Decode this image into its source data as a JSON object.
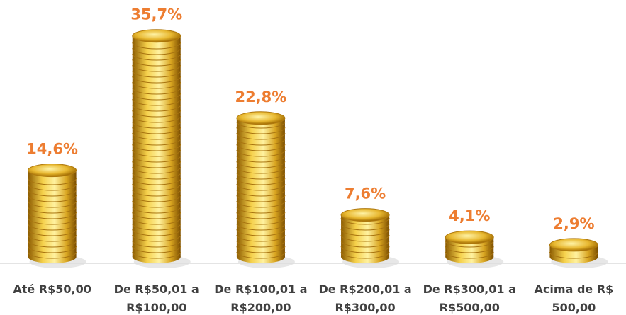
{
  "chart_data": {
    "type": "coin-stack",
    "categories": [
      "Até R$50,00",
      "De R$50,01 a R$100,00",
      "De R$100,01 a R$200,00",
      "De R$200,01 a R$300,00",
      "De R$300,01 a R$500,00",
      "Acima de R$ 500,00"
    ],
    "values": [
      14.6,
      35.7,
      22.8,
      7.6,
      4.1,
      2.9
    ],
    "value_labels": [
      "14,6%",
      "35,7%",
      "22,8%",
      "7,6%",
      "4,1%",
      "2,9%"
    ],
    "color": "#ed7d31"
  }
}
